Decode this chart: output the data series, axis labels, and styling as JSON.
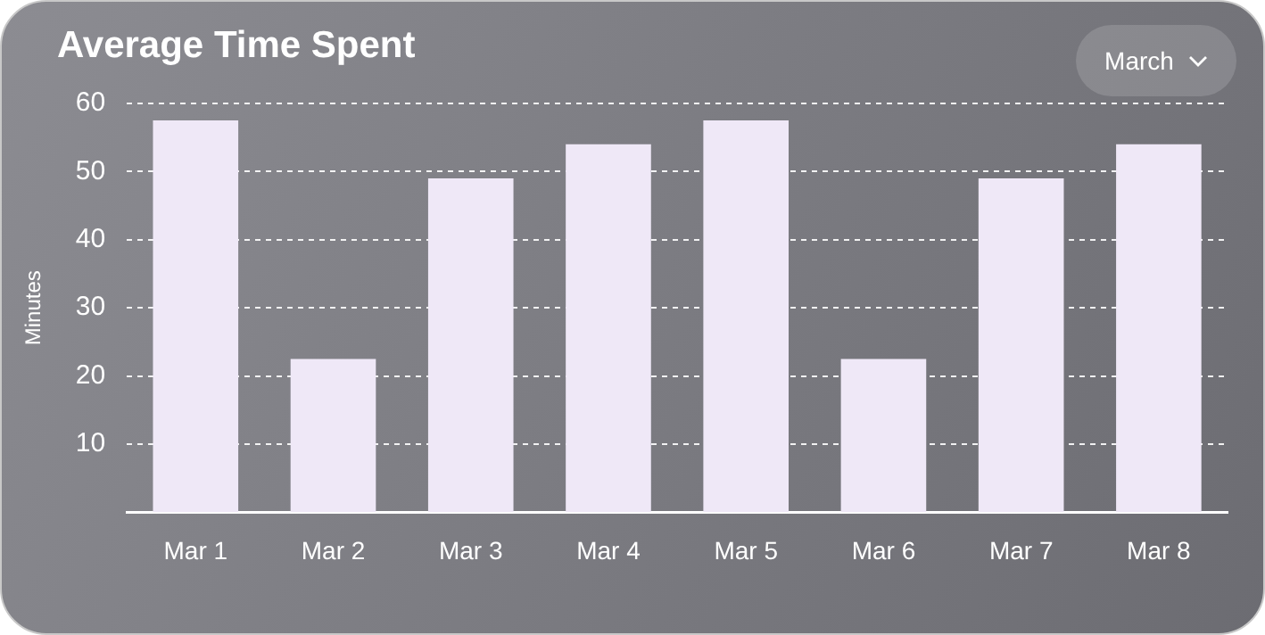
{
  "chart_data": {
    "type": "bar",
    "title": "Average Time Spent",
    "ylabel": "Minutes",
    "categories": [
      "Mar 1",
      "Mar 2",
      "Mar 3",
      "Mar 4",
      "Mar 5",
      "Mar 6",
      "Mar 7",
      "Mar 8"
    ],
    "values": [
      57.5,
      22.5,
      49,
      54,
      57.5,
      22.5,
      49,
      54
    ],
    "color": "#efe8f7",
    "ylim": [
      0,
      60
    ],
    "yticks": [
      10,
      20,
      30,
      40,
      50,
      60
    ],
    "grid": "y",
    "legend": false,
    "annotations": [
      "March"
    ]
  }
}
